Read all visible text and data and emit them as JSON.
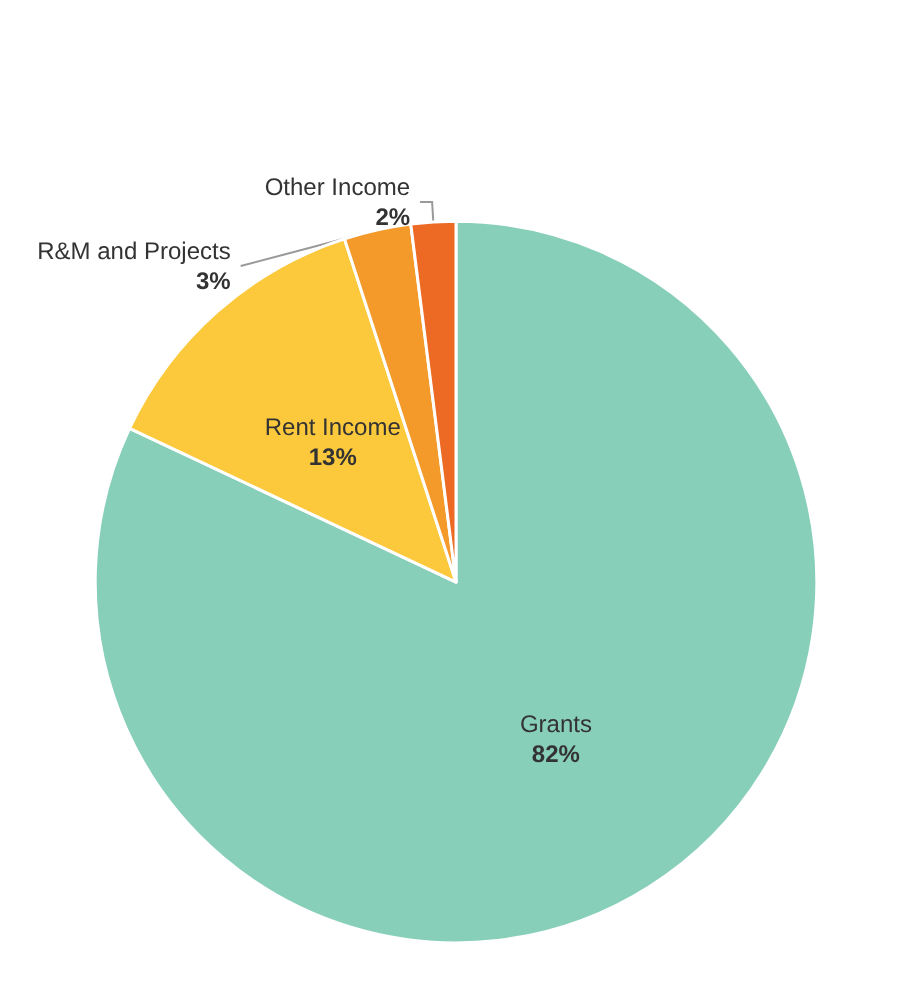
{
  "chart_data": {
    "type": "pie",
    "categories": [
      "Grants",
      "Rent Income",
      "R&M and Projects",
      "Other Income"
    ],
    "values": [
      82,
      13,
      3,
      2
    ],
    "colors": [
      "#88cfba",
      "#fcc93d",
      "#f39a2b",
      "#ec6a24"
    ],
    "value_labels": [
      "82%",
      "13%",
      "3%",
      "2%"
    ]
  }
}
